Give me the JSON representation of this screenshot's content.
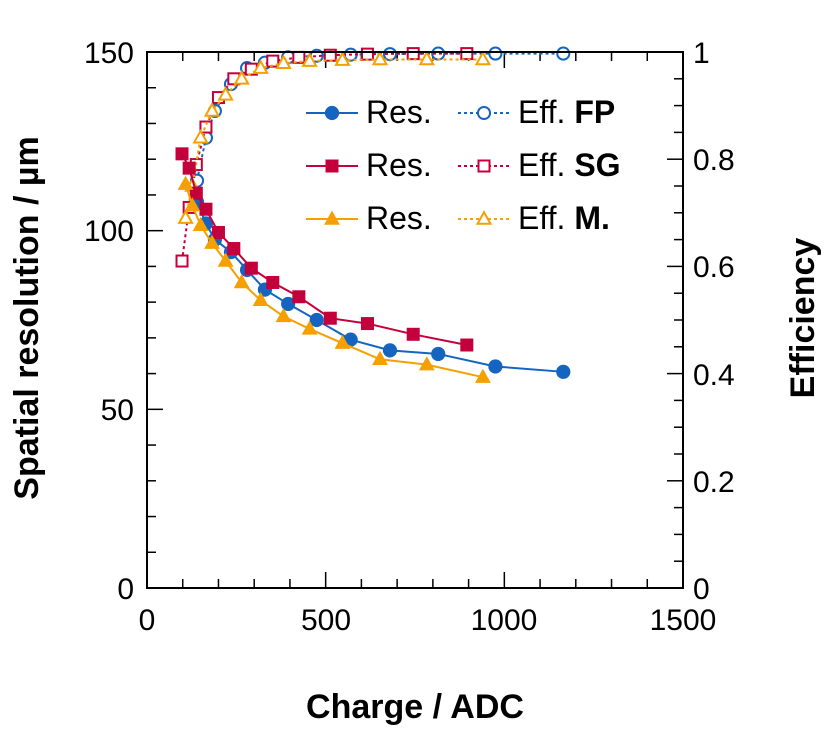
{
  "chart_data": {
    "type": "line",
    "xlabel": "Charge / ADC",
    "ylabel": "Spatial resolution / µm",
    "y2label": "Efficiency",
    "xlim": [
      0,
      1500
    ],
    "ylim": [
      0,
      150
    ],
    "y2lim": [
      0,
      1
    ],
    "x_ticks": [
      "0",
      "500",
      "1000",
      "1500"
    ],
    "y_ticks": [
      "0",
      "50",
      "100",
      "150"
    ],
    "y2_ticks": [
      "0",
      "0.2",
      "0.4",
      "0.6",
      "0.8",
      "1"
    ],
    "legend_position": "top-right",
    "legend": {
      "res_label": "Res.",
      "eff_prefix": "Eff.",
      "fp": "FP",
      "sg": "SG",
      "m": "M."
    },
    "colors": {
      "FP": "#1565c0",
      "SG": "#c4003c",
      "M": "#f5a000"
    },
    "resolution_series": [
      {
        "name": "FP",
        "axis": "left",
        "x": [
          140,
          165,
          190,
          235,
          280,
          330,
          395,
          475,
          570,
          680,
          815,
          975,
          1165
        ],
        "y": [
          108,
          102,
          97.5,
          94,
          89,
          83.5,
          79.5,
          75,
          69.5,
          66.5,
          65.5,
          62,
          60.5
        ]
      },
      {
        "name": "SG",
        "axis": "left",
        "x": [
          98,
          118,
          138,
          165,
          200,
          243,
          292,
          352,
          425,
          513,
          617,
          745,
          895
        ],
        "y": [
          121.5,
          117.5,
          110.5,
          106,
          99.5,
          95,
          89.5,
          85.5,
          81.5,
          75.5,
          74,
          71,
          68
        ]
      },
      {
        "name": "M",
        "axis": "left",
        "x": [
          108,
          127,
          150,
          182,
          220,
          265,
          318,
          382,
          455,
          547,
          652,
          783,
          940
        ],
        "y": [
          113,
          107,
          101.5,
          96.5,
          91.5,
          85.5,
          80.5,
          76,
          72.5,
          68.5,
          64,
          62.5,
          59
        ]
      }
    ],
    "efficiency_series": [
      {
        "name": "FP",
        "axis": "right",
        "x": [
          140,
          165,
          190,
          235,
          280,
          330,
          395,
          475,
          570,
          680,
          815,
          975,
          1165
        ],
        "y": [
          0.76,
          0.84,
          0.89,
          0.94,
          0.97,
          0.98,
          0.99,
          0.993,
          0.995,
          0.996,
          0.997,
          0.997,
          0.997
        ]
      },
      {
        "name": "SG",
        "axis": "right",
        "x": [
          98,
          118,
          138,
          165,
          200,
          243,
          292,
          352,
          425,
          513,
          617,
          745,
          895
        ],
        "y": [
          0.61,
          0.71,
          0.79,
          0.86,
          0.915,
          0.95,
          0.968,
          0.983,
          0.99,
          0.994,
          0.996,
          0.997,
          0.997
        ]
      },
      {
        "name": "M",
        "axis": "right",
        "x": [
          108,
          127,
          150,
          182,
          220,
          265,
          318,
          382,
          455,
          547,
          652,
          783,
          940
        ],
        "y": [
          0.69,
          0.75,
          0.84,
          0.89,
          0.92,
          0.95,
          0.97,
          0.979,
          0.983,
          0.985,
          0.986,
          0.986,
          0.986
        ]
      }
    ]
  }
}
